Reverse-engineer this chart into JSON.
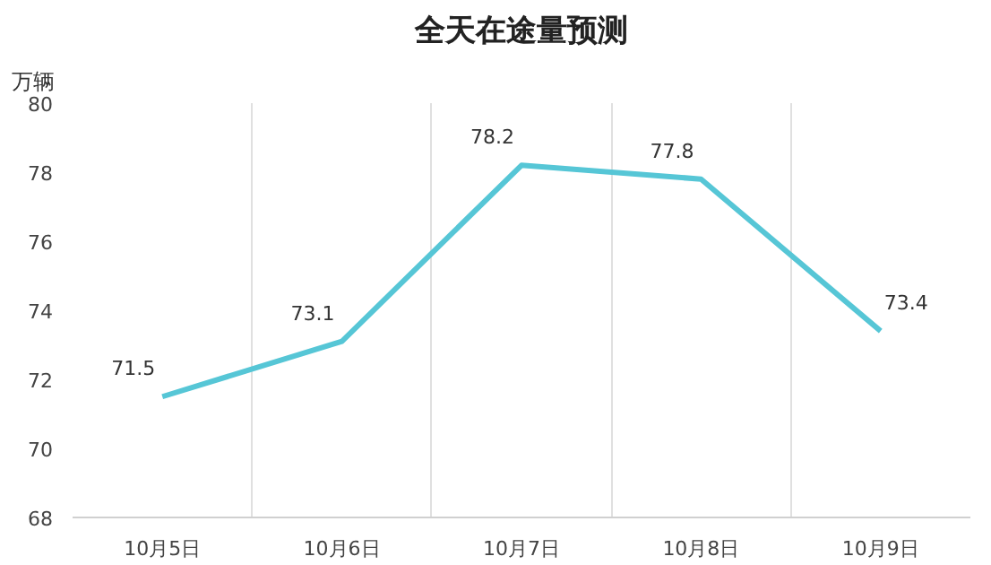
{
  "chart_data": {
    "type": "line",
    "title": "全天在途量预测",
    "ylabel": "万辆",
    "categories": [
      "10月5日",
      "10月6日",
      "10月7日",
      "10月8日",
      "10月9日"
    ],
    "series": [
      {
        "color": "#56c6d6",
        "values": [
          71.5,
          73.1,
          78.2,
          77.8,
          73.4
        ]
      }
    ],
    "ylim": [
      68,
      80
    ],
    "yticks": [
      68,
      70,
      72,
      74,
      76,
      78,
      80
    ],
    "grid": "x",
    "data_labels": true,
    "marker": "none",
    "line_style": "solid"
  }
}
